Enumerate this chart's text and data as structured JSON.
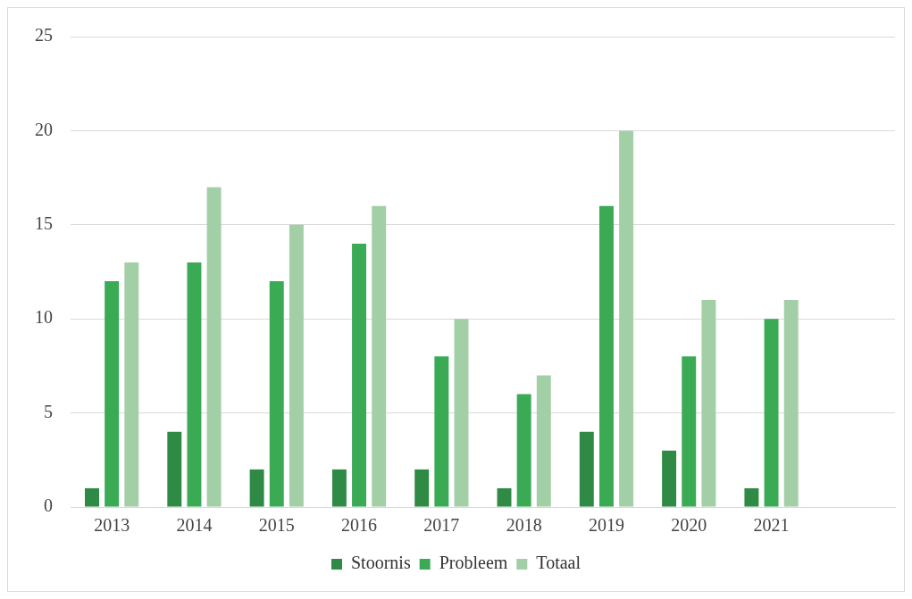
{
  "chart_data": {
    "type": "bar",
    "categories": [
      "2013",
      "2014",
      "2015",
      "2016",
      "2017",
      "2018",
      "2019",
      "2020",
      "2021",
      null
    ],
    "series": [
      {
        "name": "Stoornis",
        "color": "#2e8a45",
        "values": [
          1,
          4,
          2,
          2,
          2,
          1,
          4,
          3,
          1,
          null
        ]
      },
      {
        "name": "Probleem",
        "color": "#3aaa55",
        "values": [
          12,
          13,
          12,
          14,
          8,
          6,
          16,
          8,
          10,
          null
        ]
      },
      {
        "name": "Totaal",
        "color": "#a3cfa7",
        "values": [
          13,
          17,
          15,
          16,
          10,
          7,
          20,
          11,
          11,
          null
        ]
      }
    ],
    "ylim": [
      0,
      25
    ],
    "yticks": [
      0,
      5,
      10,
      15,
      20,
      25
    ],
    "grid": "y",
    "legend": "bottom"
  }
}
